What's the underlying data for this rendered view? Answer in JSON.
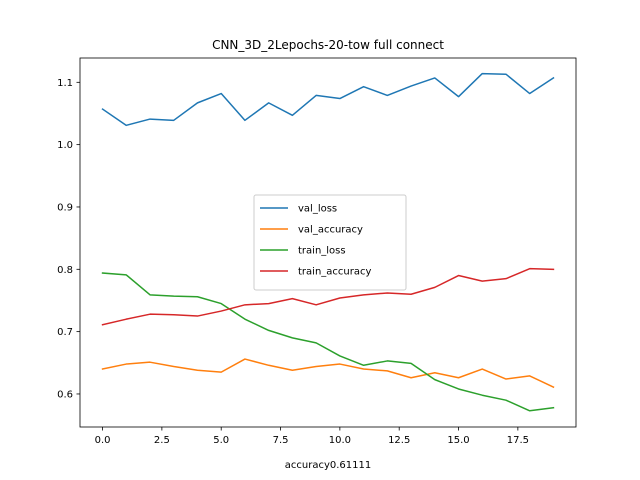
{
  "chart_data": {
    "type": "line",
    "title": "CNN_3D_2Lepochs-20-tow full connect",
    "xlabel": "accuracy0.61111",
    "ylabel": "",
    "xlim": [
      -0.95,
      19.95
    ],
    "ylim": [
      0.547,
      1.139
    ],
    "xticks": [
      0.0,
      2.5,
      5.0,
      7.5,
      10.0,
      12.5,
      15.0,
      17.5
    ],
    "xtick_labels": [
      "0.0",
      "2.5",
      "5.0",
      "7.5",
      "10.0",
      "12.5",
      "15.0",
      "17.5"
    ],
    "yticks": [
      0.6,
      0.7,
      0.8,
      0.9,
      1.0,
      1.1
    ],
    "ytick_labels": [
      "0.6",
      "0.7",
      "0.8",
      "0.9",
      "1.0",
      "1.1"
    ],
    "grid": false,
    "legend_position": "center",
    "x": [
      0,
      1,
      2,
      3,
      4,
      5,
      6,
      7,
      8,
      9,
      10,
      11,
      12,
      13,
      14,
      15,
      16,
      17,
      18,
      19
    ],
    "series": [
      {
        "name": "val_loss",
        "color": "#1f77b4",
        "values": [
          1.057,
          1.031,
          1.041,
          1.039,
          1.067,
          1.082,
          1.039,
          1.067,
          1.047,
          1.079,
          1.074,
          1.093,
          1.079,
          1.094,
          1.107,
          1.077,
          1.114,
          1.113,
          1.082,
          1.107
        ]
      },
      {
        "name": "val_accuracy",
        "color": "#ff7f0e",
        "values": [
          0.64,
          0.648,
          0.651,
          0.644,
          0.638,
          0.635,
          0.656,
          0.646,
          0.638,
          0.644,
          0.648,
          0.64,
          0.637,
          0.626,
          0.634,
          0.626,
          0.64,
          0.624,
          0.629,
          0.611
        ]
      },
      {
        "name": "train_loss",
        "color": "#2ca02c",
        "values": [
          0.794,
          0.791,
          0.759,
          0.757,
          0.756,
          0.745,
          0.72,
          0.702,
          0.69,
          0.682,
          0.661,
          0.646,
          0.653,
          0.649,
          0.623,
          0.608,
          0.598,
          0.59,
          0.573,
          0.578
        ]
      },
      {
        "name": "train_accuracy",
        "color": "#d62728",
        "values": [
          0.711,
          0.72,
          0.728,
          0.727,
          0.725,
          0.733,
          0.743,
          0.745,
          0.753,
          0.743,
          0.754,
          0.759,
          0.762,
          0.76,
          0.771,
          0.79,
          0.781,
          0.785,
          0.801,
          0.8
        ]
      }
    ]
  }
}
